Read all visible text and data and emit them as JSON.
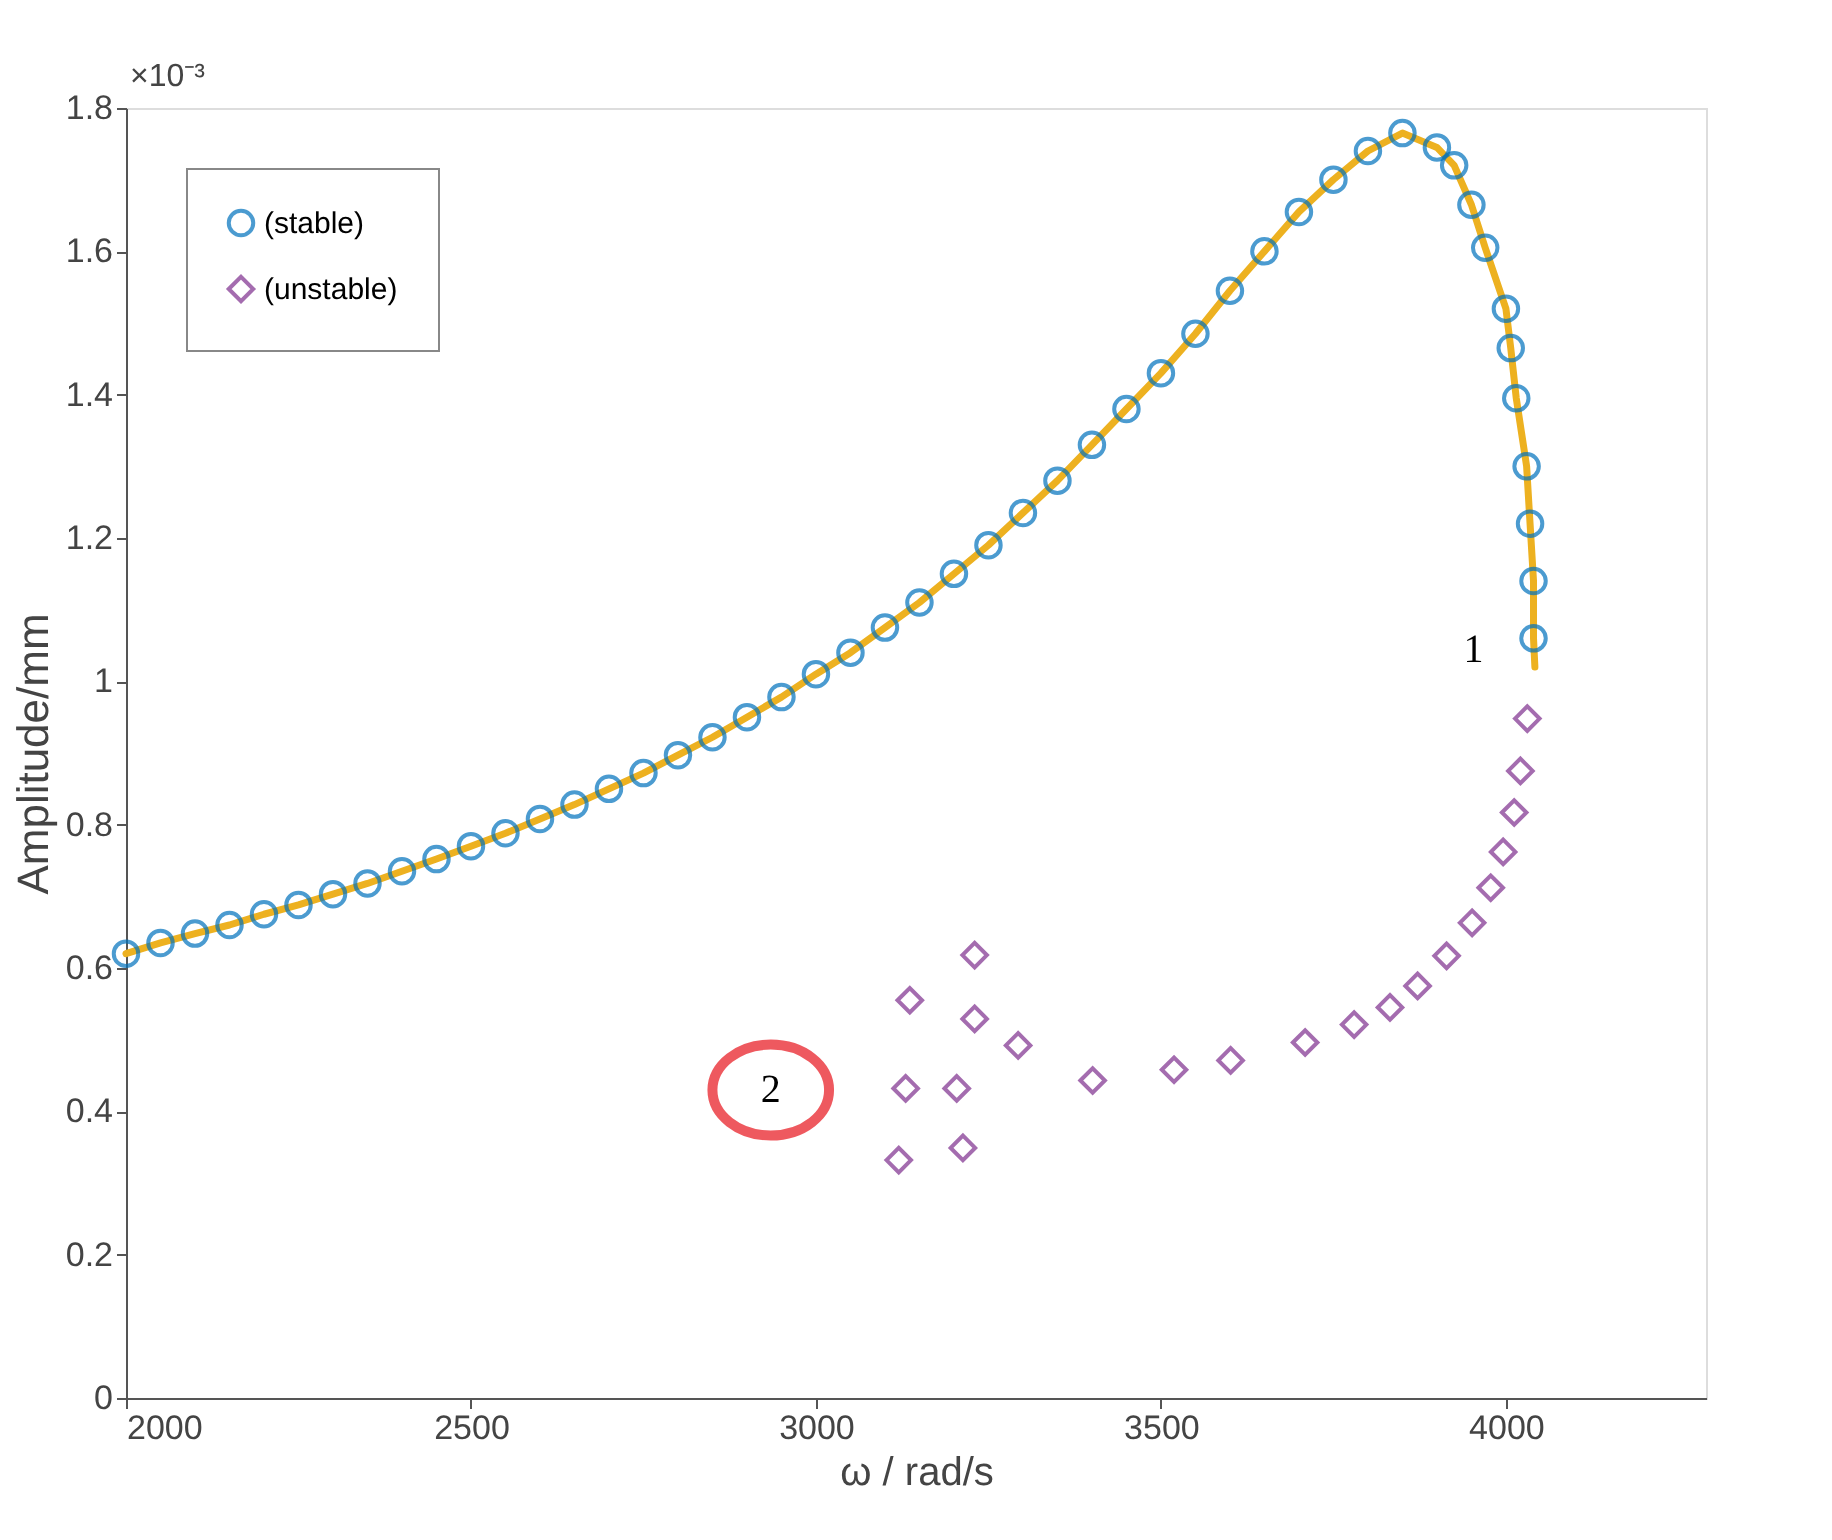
{
  "chart_data": {
    "type": "scatter",
    "xlabel": "ω / rad/s",
    "ylabel": "Amplitude/mm",
    "xlim": [
      2000,
      4290
    ],
    "xticks": [
      {
        "value": 2000,
        "label": "2000"
      },
      {
        "value": 2500,
        "label": "2500"
      },
      {
        "value": 3000,
        "label": "3000"
      },
      {
        "value": 3500,
        "label": "3500"
      },
      {
        "value": 4000,
        "label": "4000"
      }
    ],
    "ylim": [
      0,
      1.8
    ],
    "yticks": [
      0,
      0.2,
      0.4,
      0.6,
      0.8,
      1,
      1.2,
      1.4,
      1.6,
      1.8
    ],
    "legend": "top left",
    "grid": false,
    "annotations": [
      "×10⁻³",
      "1",
      "2"
    ],
    "series": [
      {
        "type": "line",
        "color": "#edb120",
        "marker": "none",
        "line_style": "solid",
        "x": [
          2000,
          2050,
          2100,
          2150,
          2200,
          2250,
          2300,
          2350,
          2400,
          2450,
          2500,
          2550,
          2600,
          2650,
          2700,
          2750,
          2800,
          2850,
          2900,
          2950,
          3000,
          3050,
          3100,
          3150,
          3200,
          3250,
          3300,
          3350,
          3400,
          3450,
          3500,
          3550,
          3600,
          3650,
          3700,
          3750,
          3800,
          3850,
          3900,
          3925,
          3950,
          3970,
          4000,
          4007,
          4015,
          4030,
          4035,
          4040,
          4040,
          4042
        ],
        "values": [
          0.62,
          0.635,
          0.648,
          0.66,
          0.675,
          0.688,
          0.703,
          0.718,
          0.735,
          0.752,
          0.77,
          0.788,
          0.808,
          0.828,
          0.85,
          0.872,
          0.897,
          0.922,
          0.95,
          0.978,
          1.01,
          1.04,
          1.075,
          1.11,
          1.15,
          1.19,
          1.235,
          1.28,
          1.33,
          1.38,
          1.43,
          1.485,
          1.545,
          1.6,
          1.655,
          1.7,
          1.74,
          1.765,
          1.745,
          1.72,
          1.665,
          1.605,
          1.52,
          1.465,
          1.395,
          1.3,
          1.22,
          1.14,
          1.06,
          1.02
        ]
      },
      {
        "name": "(stable)",
        "color": "#0072bd",
        "marker": "circle",
        "x": [
          2000,
          2050,
          2100,
          2150,
          2200,
          2250,
          2300,
          2350,
          2400,
          2450,
          2500,
          2550,
          2600,
          2650,
          2700,
          2750,
          2800,
          2850,
          2900,
          2950,
          3000,
          3050,
          3100,
          3150,
          3200,
          3250,
          3300,
          3350,
          3400,
          3450,
          3500,
          3550,
          3600,
          3650,
          3700,
          3750,
          3800,
          3850,
          3900,
          3925,
          3950,
          3970,
          4000,
          4007,
          4015,
          4030,
          4035,
          4040,
          4040
        ],
        "values": [
          0.62,
          0.635,
          0.648,
          0.66,
          0.675,
          0.688,
          0.703,
          0.718,
          0.735,
          0.752,
          0.77,
          0.788,
          0.808,
          0.828,
          0.85,
          0.872,
          0.897,
          0.922,
          0.95,
          0.978,
          1.01,
          1.04,
          1.075,
          1.11,
          1.15,
          1.19,
          1.235,
          1.28,
          1.33,
          1.38,
          1.43,
          1.485,
          1.545,
          1.6,
          1.655,
          1.7,
          1.74,
          1.765,
          1.745,
          1.72,
          1.665,
          1.605,
          1.52,
          1.465,
          1.395,
          1.3,
          1.22,
          1.14,
          1.06
        ]
      },
      {
        "name": "(unstable)",
        "color": "#7e2f8e",
        "marker": "diamond",
        "x": [
          4031,
          4021,
          4012,
          3996,
          3978,
          3951,
          3914,
          3872,
          3832,
          3780,
          3709,
          3601,
          3519,
          3401,
          3293,
          3230,
          3230,
          3136,
          3130,
          3204,
          3120,
          3213
        ],
        "values": [
          0.948,
          0.875,
          0.817,
          0.762,
          0.712,
          0.663,
          0.617,
          0.575,
          0.545,
          0.521,
          0.496,
          0.471,
          0.458,
          0.443,
          0.492,
          0.618,
          0.529,
          0.555,
          0.432,
          0.432,
          0.332,
          0.349
        ]
      }
    ]
  }
}
